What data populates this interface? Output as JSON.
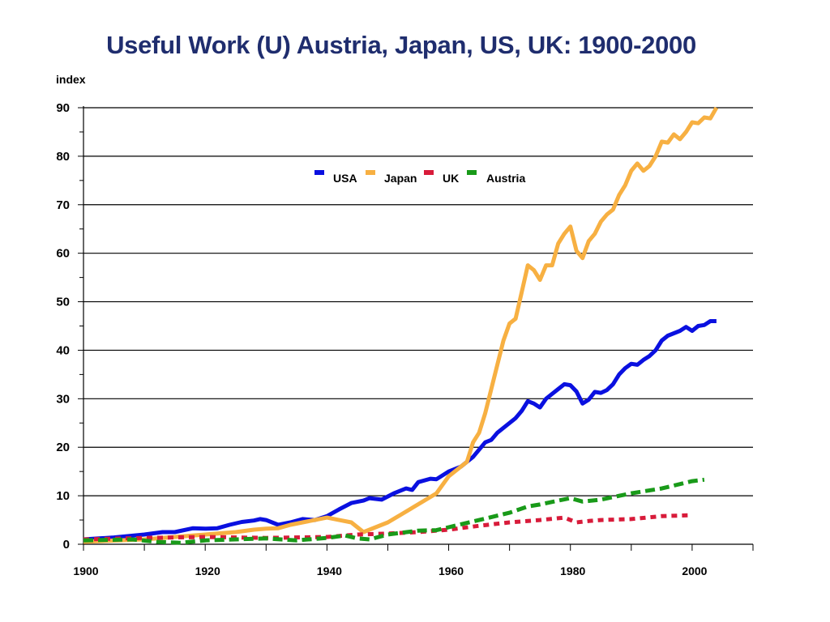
{
  "chart_data": {
    "type": "line",
    "title": "Useful Work (U) Austria, Japan, US, UK: 1900-2000",
    "ylabel": "index",
    "xlabel": "",
    "xlim": [
      1900,
      2010
    ],
    "ylim": [
      0,
      90
    ],
    "x_ticks": [
      "1900",
      "1920",
      "1940",
      "1960",
      "1980",
      "2000"
    ],
    "y_ticks": [
      "0",
      "10",
      "20",
      "30",
      "40",
      "50",
      "60",
      "70",
      "80",
      "90"
    ],
    "grid": true,
    "legend_position": "top-center",
    "series": [
      {
        "name": "USA",
        "color": "#0a10e0",
        "style": "solid",
        "points": [
          [
            1900,
            1
          ],
          [
            1905,
            1.4
          ],
          [
            1910,
            2
          ],
          [
            1913,
            2.5
          ],
          [
            1915,
            2.5
          ],
          [
            1918,
            3.3
          ],
          [
            1920,
            3.2
          ],
          [
            1922,
            3.3
          ],
          [
            1924,
            4
          ],
          [
            1926,
            4.6
          ],
          [
            1928,
            4.9
          ],
          [
            1929,
            5.2
          ],
          [
            1930,
            5
          ],
          [
            1932,
            4
          ],
          [
            1934,
            4.5
          ],
          [
            1936,
            5.2
          ],
          [
            1938,
            5
          ],
          [
            1940,
            5.8
          ],
          [
            1942,
            7.2
          ],
          [
            1944,
            8.5
          ],
          [
            1946,
            9
          ],
          [
            1947,
            9.5
          ],
          [
            1949,
            9.2
          ],
          [
            1951,
            10.5
          ],
          [
            1953,
            11.5
          ],
          [
            1954,
            11.2
          ],
          [
            1955,
            12.8
          ],
          [
            1957,
            13.5
          ],
          [
            1958,
            13.4
          ],
          [
            1960,
            15
          ],
          [
            1962,
            16
          ],
          [
            1964,
            18
          ],
          [
            1966,
            21
          ],
          [
            1967,
            21.5
          ],
          [
            1968,
            23
          ],
          [
            1970,
            25
          ],
          [
            1971,
            26
          ],
          [
            1972,
            27.5
          ],
          [
            1973,
            29.5
          ],
          [
            1974,
            29
          ],
          [
            1975,
            28.2
          ],
          [
            1976,
            30
          ],
          [
            1977,
            31
          ],
          [
            1978,
            32
          ],
          [
            1979,
            33
          ],
          [
            1980,
            32.8
          ],
          [
            1981,
            31.5
          ],
          [
            1982,
            29
          ],
          [
            1983,
            29.8
          ],
          [
            1984,
            31.4
          ],
          [
            1985,
            31.2
          ],
          [
            1986,
            31.8
          ],
          [
            1987,
            33
          ],
          [
            1988,
            35
          ],
          [
            1989,
            36.3
          ],
          [
            1990,
            37.2
          ],
          [
            1991,
            37
          ],
          [
            1992,
            38
          ],
          [
            1993,
            38.8
          ],
          [
            1994,
            40
          ],
          [
            1995,
            42
          ],
          [
            1996,
            43
          ],
          [
            1997,
            43.5
          ],
          [
            1998,
            44
          ],
          [
            1999,
            44.8
          ],
          [
            2000,
            44
          ],
          [
            2001,
            45
          ],
          [
            2002,
            45.2
          ],
          [
            2003,
            46
          ],
          [
            2004,
            46
          ]
        ]
      },
      {
        "name": "Japan",
        "color": "#f7b042",
        "style": "solid",
        "points": [
          [
            1900,
            0.5
          ],
          [
            1910,
            1
          ],
          [
            1915,
            1.5
          ],
          [
            1920,
            2
          ],
          [
            1925,
            2.5
          ],
          [
            1928,
            3
          ],
          [
            1930,
            3.2
          ],
          [
            1932,
            3.3
          ],
          [
            1934,
            4
          ],
          [
            1936,
            4.5
          ],
          [
            1938,
            5
          ],
          [
            1940,
            5.5
          ],
          [
            1942,
            5
          ],
          [
            1944,
            4.5
          ],
          [
            1945,
            3.5
          ],
          [
            1946,
            2.5
          ],
          [
            1948,
            3.5
          ],
          [
            1950,
            4.5
          ],
          [
            1952,
            6
          ],
          [
            1954,
            7.5
          ],
          [
            1956,
            9
          ],
          [
            1958,
            10.5
          ],
          [
            1960,
            14
          ],
          [
            1962,
            16
          ],
          [
            1963,
            17
          ],
          [
            1964,
            21
          ],
          [
            1965,
            23
          ],
          [
            1966,
            27
          ],
          [
            1967,
            32
          ],
          [
            1968,
            37
          ],
          [
            1969,
            42
          ],
          [
            1970,
            45.5
          ],
          [
            1971,
            46.5
          ],
          [
            1972,
            52
          ],
          [
            1973,
            57.5
          ],
          [
            1974,
            56.5
          ],
          [
            1975,
            54.5
          ],
          [
            1976,
            57.5
          ],
          [
            1977,
            57.5
          ],
          [
            1978,
            62
          ],
          [
            1979,
            64
          ],
          [
            1980,
            65.5
          ],
          [
            1981,
            60.5
          ],
          [
            1982,
            59
          ],
          [
            1983,
            62.5
          ],
          [
            1984,
            64
          ],
          [
            1985,
            66.5
          ],
          [
            1986,
            68
          ],
          [
            1987,
            69
          ],
          [
            1988,
            72
          ],
          [
            1989,
            74
          ],
          [
            1990,
            77
          ],
          [
            1991,
            78.5
          ],
          [
            1992,
            77
          ],
          [
            1993,
            78
          ],
          [
            1994,
            80
          ],
          [
            1995,
            83
          ],
          [
            1996,
            82.8
          ],
          [
            1997,
            84.5
          ],
          [
            1998,
            83.5
          ],
          [
            1999,
            85
          ],
          [
            2000,
            87
          ],
          [
            2001,
            86.8
          ],
          [
            2002,
            88
          ],
          [
            2003,
            87.8
          ],
          [
            2004,
            90
          ]
        ]
      },
      {
        "name": "UK",
        "color": "#d81b3a",
        "style": "dotted",
        "points": [
          [
            1900,
            1
          ],
          [
            1910,
            1.3
          ],
          [
            1920,
            1.5
          ],
          [
            1930,
            1.3
          ],
          [
            1940,
            1.5
          ],
          [
            1945,
            2
          ],
          [
            1950,
            2.2
          ],
          [
            1955,
            2.5
          ],
          [
            1960,
            3
          ],
          [
            1965,
            3.8
          ],
          [
            1970,
            4.5
          ],
          [
            1975,
            5
          ],
          [
            1979,
            5.5
          ],
          [
            1981,
            4.5
          ],
          [
            1983,
            4.8
          ],
          [
            1985,
            5
          ],
          [
            1990,
            5.2
          ],
          [
            1995,
            5.8
          ],
          [
            2000,
            6
          ]
        ]
      },
      {
        "name": "Austria",
        "color": "#199a19",
        "style": "dashed",
        "points": [
          [
            1900,
            0.8
          ],
          [
            1908,
            1
          ],
          [
            1912,
            0.5
          ],
          [
            1916,
            0.3
          ],
          [
            1920,
            0.8
          ],
          [
            1930,
            1.2
          ],
          [
            1935,
            0.8
          ],
          [
            1940,
            1.3
          ],
          [
            1943,
            1.8
          ],
          [
            1945,
            1.2
          ],
          [
            1947,
            1
          ],
          [
            1950,
            2
          ],
          [
            1955,
            2.8
          ],
          [
            1958,
            2.9
          ],
          [
            1960,
            3.5
          ],
          [
            1965,
            5
          ],
          [
            1970,
            6.5
          ],
          [
            1973,
            7.8
          ],
          [
            1975,
            8.2
          ],
          [
            1978,
            9
          ],
          [
            1980,
            9.5
          ],
          [
            1982,
            8.8
          ],
          [
            1985,
            9.2
          ],
          [
            1990,
            10.5
          ],
          [
            1995,
            11.5
          ],
          [
            2000,
            13
          ],
          [
            2002,
            13.3
          ]
        ]
      }
    ]
  }
}
